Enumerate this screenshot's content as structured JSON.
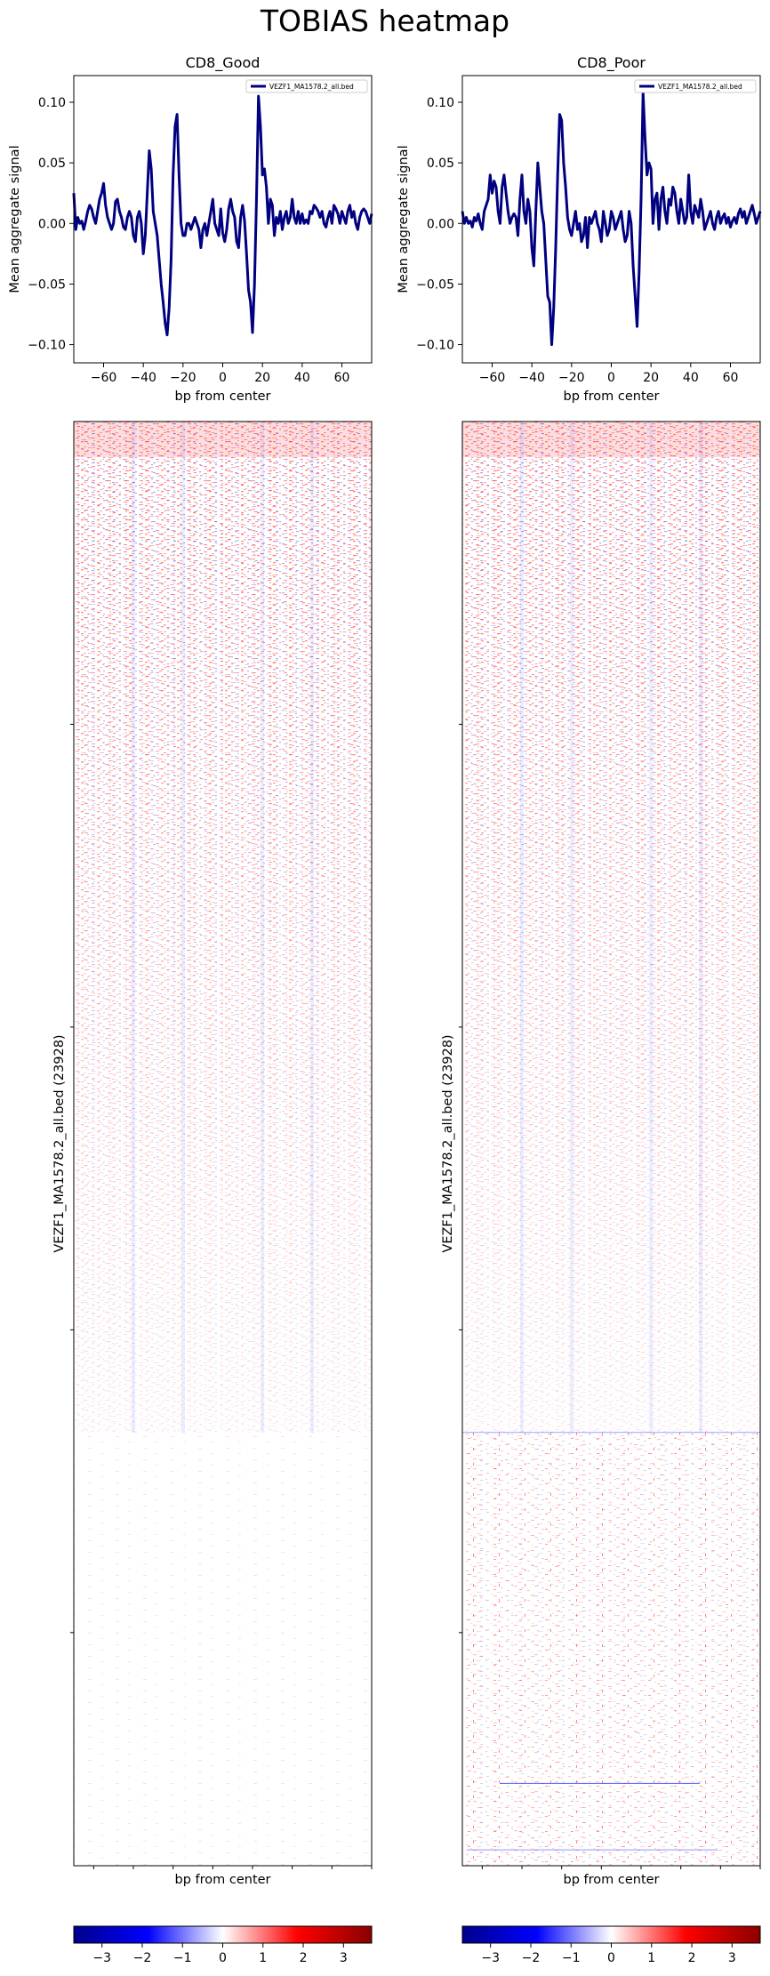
{
  "figure": {
    "title": "TOBIAS heatmap"
  },
  "chart_data": [
    {
      "type": "line",
      "title": "CD8_Good",
      "xlabel": "bp from center",
      "ylabel": "Mean aggregate signal",
      "xlim": [
        -75,
        75
      ],
      "ylim": [
        -0.115,
        0.122
      ],
      "xticks": [
        -60,
        -40,
        -20,
        0,
        20,
        40,
        60
      ],
      "xtick_labels": [
        "−60",
        "−40",
        "−20",
        "0",
        "20",
        "40",
        "60"
      ],
      "yticks": [
        -0.1,
        -0.05,
        0.0,
        0.05,
        0.1
      ],
      "ytick_labels": [
        "−0.10",
        "−0.05",
        "0.00",
        "0.05",
        "0.10"
      ],
      "grid": false,
      "legend_position": "top-right",
      "series": [
        {
          "name": "VEZF1_MA1578.2_all.bed",
          "color": "#000080",
          "x_start": -75,
          "x_step": 1,
          "values": [
            0.025,
            -0.005,
            0.005,
            0.0,
            0.002,
            -0.005,
            0.002,
            0.01,
            0.015,
            0.012,
            0.005,
            0.0,
            0.01,
            0.02,
            0.025,
            0.033,
            0.015,
            0.005,
            0.0,
            -0.005,
            0.0,
            0.018,
            0.02,
            0.01,
            0.005,
            -0.003,
            -0.005,
            0.005,
            0.01,
            0.005,
            -0.01,
            -0.015,
            0.005,
            0.01,
            0.0,
            -0.025,
            -0.01,
            0.025,
            0.06,
            0.045,
            0.01,
            0.0,
            -0.01,
            -0.03,
            -0.05,
            -0.065,
            -0.082,
            -0.092,
            -0.07,
            -0.03,
            0.04,
            0.08,
            0.09,
            0.04,
            0.0,
            -0.01,
            -0.01,
            0.0,
            0.0,
            -0.005,
            0.0,
            0.005,
            0.0,
            -0.005,
            -0.02,
            -0.005,
            0.0,
            -0.01,
            0.0,
            0.01,
            0.02,
            0.0,
            -0.005,
            -0.01,
            0.012,
            -0.008,
            -0.015,
            -0.005,
            0.012,
            0.02,
            0.01,
            0.005,
            -0.015,
            -0.02,
            0.005,
            0.015,
            0.002,
            -0.025,
            -0.055,
            -0.065,
            -0.09,
            -0.05,
            0.02,
            0.105,
            0.08,
            0.04,
            0.045,
            0.03,
            0.0,
            0.02,
            0.015,
            -0.01,
            0.005,
            0.0,
            0.01,
            -0.005,
            0.005,
            0.01,
            0.0,
            0.005,
            0.02,
            0.005,
            0.0,
            0.01,
            0.0,
            0.008,
            0.0,
            0.003,
            0.0,
            0.01,
            0.008,
            0.015,
            0.013,
            0.01,
            0.005,
            0.01,
            0.0,
            -0.003,
            0.005,
            0.01,
            0.0,
            0.015,
            0.012,
            0.008,
            0.0,
            0.01,
            0.005,
            0.0,
            0.01,
            0.015,
            0.005,
            0.01,
            0.0,
            -0.005,
            0.005,
            0.01,
            0.012,
            0.01,
            0.005,
            0.0,
            0.008
          ]
        }
      ]
    },
    {
      "type": "line",
      "title": "CD8_Poor",
      "xlabel": "bp from center",
      "ylabel": "Mean aggregate signal",
      "xlim": [
        -75,
        75
      ],
      "ylim": [
        -0.115,
        0.122
      ],
      "xticks": [
        -60,
        -40,
        -20,
        0,
        20,
        40,
        60
      ],
      "xtick_labels": [
        "−60",
        "−40",
        "−20",
        "0",
        "20",
        "40",
        "60"
      ],
      "yticks": [
        -0.1,
        -0.05,
        0.0,
        0.05,
        0.1
      ],
      "ytick_labels": [
        "−0.10",
        "−0.05",
        "0.00",
        "0.05",
        "0.10"
      ],
      "grid": false,
      "legend_position": "top-right",
      "series": [
        {
          "name": "VEZF1_MA1578.2_all.bed",
          "color": "#000080",
          "x_start": -75,
          "x_step": 1,
          "values": [
            0.01,
            0.0,
            0.005,
            0.0,
            0.002,
            -0.003,
            0.005,
            0.002,
            0.008,
            0.0,
            -0.005,
            0.01,
            0.015,
            0.02,
            0.04,
            0.025,
            0.035,
            0.03,
            0.01,
            0.0,
            0.03,
            0.04,
            0.025,
            0.01,
            0.0,
            0.005,
            0.008,
            0.005,
            -0.01,
            0.02,
            0.04,
            0.01,
            0.0,
            0.02,
            0.01,
            -0.02,
            -0.035,
            0.01,
            0.05,
            0.03,
            0.01,
            0.0,
            -0.03,
            -0.06,
            -0.065,
            -0.1,
            -0.07,
            -0.02,
            0.04,
            0.09,
            0.085,
            0.05,
            0.03,
            0.005,
            -0.005,
            -0.01,
            0.0,
            0.01,
            -0.005,
            0.0,
            -0.015,
            -0.01,
            0.005,
            -0.02,
            0.005,
            0.0,
            0.005,
            0.01,
            0.0,
            -0.005,
            -0.015,
            0.01,
            0.0,
            -0.01,
            -0.005,
            0.01,
            0.005,
            -0.005,
            0.0,
            0.005,
            0.01,
            -0.005,
            -0.015,
            -0.01,
            0.01,
            0.0,
            -0.035,
            -0.06,
            -0.085,
            -0.04,
            0.02,
            0.108,
            0.07,
            0.04,
            0.05,
            0.045,
            0.0,
            0.02,
            0.025,
            -0.005,
            0.02,
            0.03,
            0.01,
            0.0,
            0.02,
            0.015,
            0.03,
            0.025,
            0.01,
            0.0,
            0.02,
            0.01,
            0.0,
            0.005,
            0.04,
            0.01,
            0.0,
            0.015,
            0.01,
            0.005,
            0.02,
            0.01,
            -0.005,
            0.0,
            0.005,
            0.01,
            0.0,
            -0.005,
            0.005,
            0.01,
            0.0,
            0.005,
            0.008,
            0.0,
            0.005,
            -0.003,
            0.002,
            0.005,
            0.0,
            0.008,
            0.012,
            0.005,
            0.01,
            0.0,
            0.005,
            0.01,
            0.015,
            0.008,
            0.0,
            0.005,
            0.01
          ]
        }
      ]
    },
    {
      "type": "heatmap",
      "title": "",
      "xlabel": "bp from center",
      "ylabel": "VEZF1_MA1578.2_all.bed (23928)",
      "colorscale": [
        "#00008b",
        "#0000ff",
        "#ffffff",
        "#ff0000",
        "#8b0000"
      ],
      "zlim": [
        -3.7,
        3.7
      ]
    },
    {
      "type": "heatmap",
      "title": "",
      "xlabel": "bp from center",
      "ylabel": "VEZF1_MA1578.2_all.bed (23928)",
      "colorscale": [
        "#00008b",
        "#0000ff",
        "#ffffff",
        "#ff0000",
        "#8b0000"
      ],
      "zlim": [
        -3.7,
        3.7
      ]
    }
  ],
  "colorbars": [
    {
      "ticks": [
        -3,
        -2,
        -1,
        0,
        1,
        2,
        3
      ],
      "tick_labels": [
        "−3",
        "−2",
        "−1",
        "0",
        "1",
        "2",
        "3"
      ],
      "range": [
        -3.7,
        3.7
      ]
    },
    {
      "ticks": [
        -3,
        -2,
        -1,
        0,
        1,
        2,
        3
      ],
      "tick_labels": [
        "−3",
        "−2",
        "−1",
        "0",
        "1",
        "2",
        "3"
      ],
      "range": [
        -3.7,
        3.7
      ]
    }
  ]
}
